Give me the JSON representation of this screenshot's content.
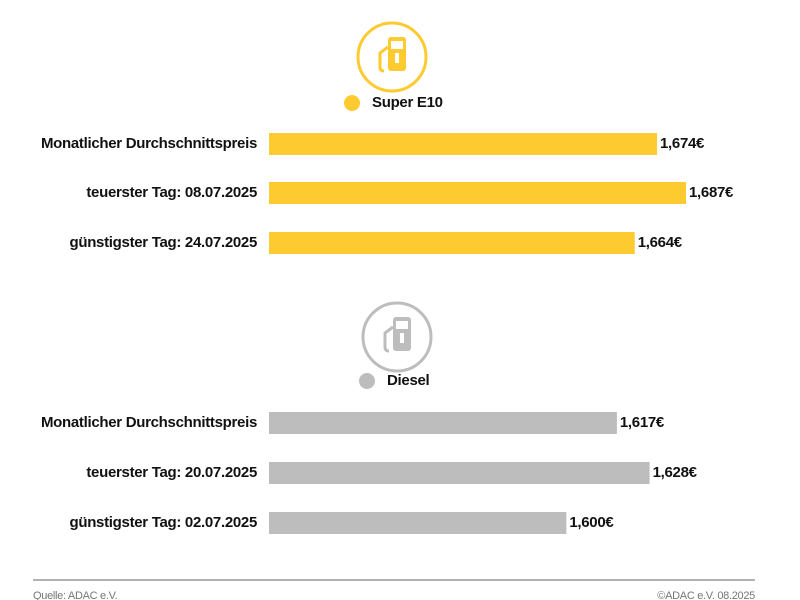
{
  "chart_data": [
    {
      "type": "bar",
      "orientation": "horizontal",
      "categories": [
        "Monatlicher Durchschnittspreis",
        "teuerster Tag: 08.07.2025",
        "günstigster Tag: 24.07.2025"
      ],
      "series": [
        {
          "name": "Super E10",
          "color": "#fdca2f",
          "values": [
            1.674,
            1.687,
            1.664
          ],
          "value_labels": [
            "1,674€",
            "1,687€",
            "1,664€"
          ]
        }
      ],
      "xlim": [
        1.5,
        1.7
      ]
    },
    {
      "type": "bar",
      "orientation": "horizontal",
      "categories": [
        "Monatlicher Durchschnittspreis",
        "teuerster Tag: 20.07.2025",
        "günstigster Tag: 02.07.2025"
      ],
      "series": [
        {
          "name": "Diesel",
          "color": "#bdbdbd",
          "values": [
            1.617,
            1.628,
            1.6
          ],
          "value_labels": [
            "1,617€",
            "1,628€",
            "1,600€"
          ]
        }
      ],
      "xlim": [
        1.5,
        1.65
      ]
    }
  ],
  "footer": {
    "source": "Quelle: ADAC e.V.",
    "copyright": "©ADAC e.V. 08.2025"
  }
}
